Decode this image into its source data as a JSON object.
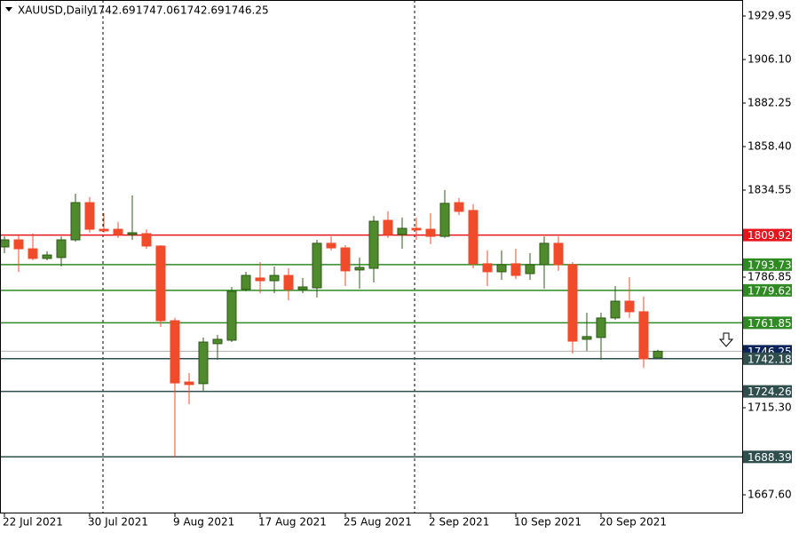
{
  "chart_data": {
    "type": "candlestick",
    "title": "XAUUSD,Daily",
    "categories": [
      "22 Jul 2021",
      null,
      null,
      null,
      null,
      null,
      "30 Jul 2021",
      null,
      null,
      null,
      null,
      null,
      "9 Aug 2021",
      null,
      null,
      null,
      null,
      null,
      "17 Aug 2021",
      null,
      null,
      null,
      null,
      null,
      "25 Aug 2021",
      null,
      null,
      null,
      null,
      null,
      "2 Sep 2021",
      null,
      null,
      null,
      null,
      null,
      "10 Sep 2021",
      null,
      null,
      null,
      null,
      null,
      "20 Sep 2021",
      null,
      null,
      null,
      null
    ],
    "open": [
      1803.4,
      1807.3,
      1802.4,
      1797.1,
      1797.6,
      1807.3,
      1827.7,
      1813.1,
      1813.1,
      1810.2,
      1810.7,
      1803.9,
      1763.0,
      1729.4,
      1728.5,
      1750.4,
      1752.3,
      1780.1,
      1786.4,
      1784.9,
      1787.8,
      1780.1,
      1781.0,
      1805.4,
      1802.9,
      1790.8,
      1791.7,
      1818.0,
      1810.2,
      1813.6,
      1813.1,
      1809.2,
      1827.7,
      1823.4,
      1794.2,
      1789.8,
      1794.2,
      1788.8,
      1793.7,
      1805.4,
      1793.7,
      1752.8,
      1753.8,
      1764.5,
      1773.7,
      1767.9,
      1742.69
    ],
    "high": [
      1809.2,
      1809.7,
      1810.7,
      1801.0,
      1809.2,
      1832.6,
      1830.7,
      1821.9,
      1817.0,
      1831.6,
      1813.1,
      1804.4,
      1764.5,
      1734.3,
      1753.8,
      1755.2,
      1781.5,
      1789.8,
      1795.1,
      1792.7,
      1791.7,
      1786.4,
      1807.3,
      1809.2,
      1804.4,
      1797.6,
      1820.4,
      1822.9,
      1819.5,
      1819.5,
      1821.9,
      1834.6,
      1830.2,
      1826.8,
      1801.5,
      1801.5,
      1802.4,
      1800.0,
      1809.2,
      1809.2,
      1795.1,
      1767.4,
      1767.4,
      1782.0,
      1786.9,
      1776.2,
      1747.06
    ],
    "low": [
      1800.0,
      1789.8,
      1796.1,
      1796.1,
      1792.7,
      1806.3,
      1811.2,
      1811.2,
      1808.3,
      1807.3,
      1802.4,
      1759.6,
      1688.1,
      1717.3,
      1724.6,
      1741.6,
      1751.3,
      1779.1,
      1778.1,
      1778.1,
      1774.2,
      1778.1,
      1775.7,
      1801.5,
      1782.0,
      1780.5,
      1783.9,
      1808.3,
      1802.4,
      1807.3,
      1804.9,
      1808.3,
      1820.9,
      1791.7,
      1782.0,
      1785.4,
      1785.9,
      1785.4,
      1780.5,
      1790.3,
      1745.0,
      1746.5,
      1741.6,
      1763.5,
      1764.5,
      1737.2,
      1742.69
    ],
    "close": [
      1807.3,
      1802.4,
      1797.1,
      1799.0,
      1807.3,
      1827.7,
      1813.1,
      1812.2,
      1810.2,
      1811.2,
      1803.9,
      1763.0,
      1728.9,
      1728.0,
      1751.3,
      1752.8,
      1779.1,
      1787.8,
      1784.9,
      1787.8,
      1780.1,
      1781.5,
      1805.4,
      1802.9,
      1790.3,
      1792.2,
      1817.5,
      1810.2,
      1813.6,
      1812.7,
      1809.2,
      1827.3,
      1822.9,
      1794.2,
      1789.8,
      1793.7,
      1787.8,
      1793.7,
      1805.4,
      1793.7,
      1751.8,
      1754.3,
      1764.5,
      1773.7,
      1767.9,
      1742.1,
      1746.25
    ],
    "up_color": "#4f8a2c",
    "down_color": "#f04b2a",
    "ylim": [
      1657.38,
      1938.71
    ],
    "yticks": [
      {
        "value": 1667.6,
        "label": "1667.60"
      },
      {
        "value": 1715.3,
        "label": "1715.30"
      },
      1786.85,
      1834.55,
      {
        "value": 1858.4,
        "label": "1858.40"
      },
      1882.25,
      {
        "value": 1906.1,
        "label": "1906.10"
      },
      1929.95
    ],
    "levels": [
      {
        "value": 1809.92,
        "color": "#e8141c"
      },
      {
        "value": 1793.73,
        "color": "#2e8b22"
      },
      {
        "value": 1779.62,
        "color": "#2e8b22"
      },
      {
        "value": 1761.85,
        "color": "#2e8b22"
      },
      {
        "value": 1742.18,
        "color": "#2f4f4f"
      },
      {
        "value": 1724.26,
        "color": "#2f4f4f"
      },
      {
        "value": 1688.39,
        "color": "#2f4f4f"
      }
    ],
    "current_price": {
      "value": 1746.25,
      "color": "#0b2358"
    }
  }
}
